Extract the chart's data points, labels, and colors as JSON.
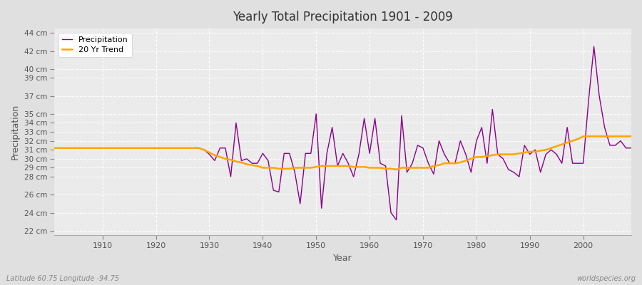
{
  "title": "Yearly Total Precipitation 1901 - 2009",
  "xlabel": "Year",
  "ylabel": "Precipitation",
  "footnote_left": "Latitude 60.75 Longitude -94.75",
  "footnote_right": "worldspecies.org",
  "ylim": [
    21.5,
    44.5
  ],
  "ytick_positions": [
    22,
    24,
    26,
    28,
    29,
    30,
    31,
    32,
    33,
    34,
    35,
    37,
    39,
    40,
    42,
    44
  ],
  "ytick_labels": [
    "22 cm",
    "24 cm",
    "26 cm",
    "28 cm",
    "29 cm",
    "30 cm",
    "31 cm",
    "32 cm",
    "33 cm",
    "34 cm",
    "35 cm",
    "37 cm",
    "39 cm",
    "40 cm",
    "42 cm",
    "44 cm"
  ],
  "xtick_positions": [
    1910,
    1920,
    1930,
    1940,
    1950,
    1960,
    1970,
    1980,
    1990,
    2000
  ],
  "precip_color": "#8B008B",
  "trend_color": "#FFA500",
  "fig_bg_color": "#e0e0e0",
  "plot_bg_color": "#ebebeb",
  "grid_color": "#ffffff",
  "grid_alpha": 0.9,
  "years": [
    1901,
    1902,
    1903,
    1904,
    1905,
    1906,
    1907,
    1908,
    1909,
    1910,
    1911,
    1912,
    1913,
    1914,
    1915,
    1916,
    1917,
    1918,
    1919,
    1920,
    1921,
    1922,
    1923,
    1924,
    1925,
    1926,
    1927,
    1928,
    1929,
    1930,
    1931,
    1932,
    1933,
    1934,
    1935,
    1936,
    1937,
    1938,
    1939,
    1940,
    1941,
    1942,
    1943,
    1944,
    1945,
    1946,
    1947,
    1948,
    1949,
    1950,
    1951,
    1952,
    1953,
    1954,
    1955,
    1956,
    1957,
    1958,
    1959,
    1960,
    1961,
    1962,
    1963,
    1964,
    1965,
    1966,
    1967,
    1968,
    1969,
    1970,
    1971,
    1972,
    1973,
    1974,
    1975,
    1976,
    1977,
    1978,
    1979,
    1980,
    1981,
    1982,
    1983,
    1984,
    1985,
    1986,
    1987,
    1988,
    1989,
    1990,
    1991,
    1992,
    1993,
    1994,
    1995,
    1996,
    1997,
    1998,
    1999,
    2000,
    2001,
    2002,
    2003,
    2004,
    2005,
    2006,
    2007,
    2008,
    2009
  ],
  "precip": [
    31.2,
    31.2,
    31.2,
    31.2,
    31.2,
    31.2,
    31.2,
    31.2,
    31.2,
    31.2,
    31.2,
    31.2,
    31.2,
    31.2,
    31.2,
    31.2,
    31.2,
    31.2,
    31.2,
    31.2,
    31.2,
    31.2,
    31.2,
    31.2,
    31.2,
    31.2,
    31.2,
    31.2,
    31.0,
    30.5,
    29.8,
    31.2,
    31.2,
    28.0,
    34.0,
    29.8,
    30.0,
    29.5,
    29.5,
    30.6,
    29.8,
    26.5,
    26.3,
    30.6,
    30.6,
    28.5,
    25.0,
    30.6,
    30.6,
    35.0,
    24.5,
    30.6,
    33.5,
    29.2,
    30.6,
    29.5,
    28.0,
    30.5,
    34.5,
    30.6,
    34.5,
    29.5,
    29.2,
    24.0,
    23.2,
    34.8,
    28.5,
    29.5,
    31.5,
    31.2,
    29.5,
    28.3,
    32.0,
    30.5,
    29.5,
    29.5,
    32.0,
    30.5,
    28.5,
    32.0,
    33.5,
    29.5,
    35.5,
    30.5,
    30.0,
    28.8,
    28.5,
    28.0,
    31.5,
    30.5,
    31.0,
    28.5,
    30.5,
    31.0,
    30.5,
    29.5,
    33.5,
    29.5,
    29.5,
    29.5,
    36.5,
    42.5,
    37.0,
    33.5,
    31.5,
    31.5,
    32.0,
    31.2,
    31.2
  ],
  "trend": [
    31.2,
    31.2,
    31.2,
    31.2,
    31.2,
    31.2,
    31.2,
    31.2,
    31.2,
    31.2,
    31.2,
    31.2,
    31.2,
    31.2,
    31.2,
    31.2,
    31.2,
    31.2,
    31.2,
    31.2,
    31.2,
    31.2,
    31.2,
    31.2,
    31.2,
    31.2,
    31.2,
    31.2,
    31.0,
    30.7,
    30.4,
    30.2,
    30.0,
    29.9,
    29.7,
    29.6,
    29.4,
    29.3,
    29.2,
    29.0,
    29.0,
    29.0,
    28.9,
    28.9,
    28.9,
    29.0,
    29.0,
    29.0,
    29.0,
    29.1,
    29.2,
    29.2,
    29.2,
    29.2,
    29.2,
    29.2,
    29.1,
    29.1,
    29.1,
    29.0,
    29.0,
    29.0,
    28.9,
    28.9,
    28.8,
    29.0,
    29.0,
    29.0,
    29.0,
    29.0,
    29.0,
    29.2,
    29.3,
    29.5,
    29.5,
    29.5,
    29.6,
    29.8,
    30.0,
    30.2,
    30.2,
    30.3,
    30.4,
    30.5,
    30.5,
    30.5,
    30.5,
    30.6,
    30.7,
    30.8,
    30.8,
    30.9,
    31.0,
    31.2,
    31.4,
    31.6,
    31.8,
    32.0,
    32.2,
    32.5,
    32.5,
    32.5,
    32.5,
    32.5,
    32.5,
    32.5,
    32.5,
    32.5,
    32.5
  ]
}
